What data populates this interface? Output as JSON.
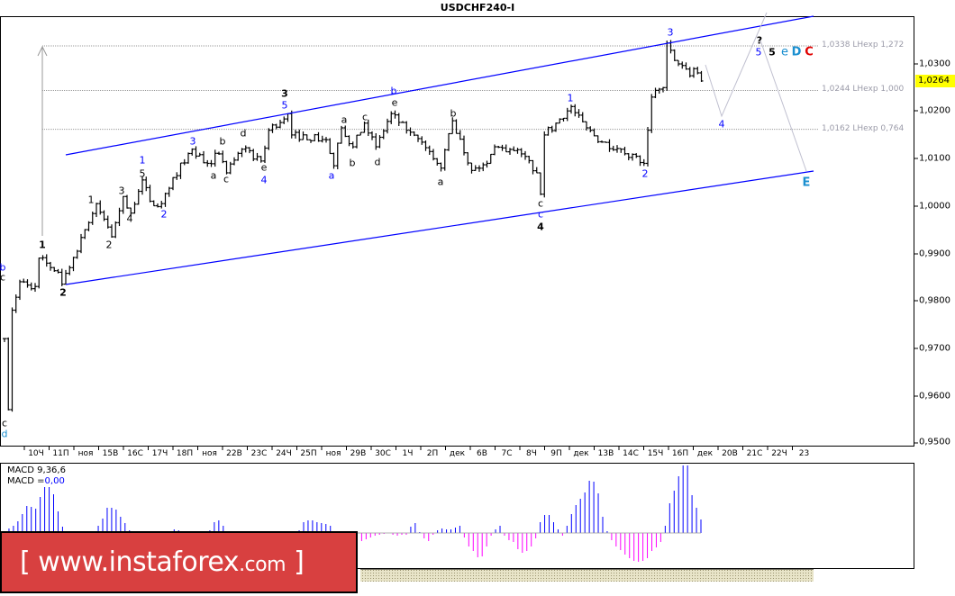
{
  "window": {
    "title": "USDCHF240-I"
  },
  "price_axis": {
    "ticks": [
      "1,0300",
      "1,0200",
      "1,0100",
      "1,0000",
      "0,9900",
      "0,9800",
      "0,9700",
      "0,9600",
      "0,9500"
    ],
    "current_price": "1,0264",
    "current_price_color": "#ffff00"
  },
  "time_axis": {
    "ticks": [
      "10Ч",
      "11П",
      "ноя",
      "15В",
      "16С",
      "17Ч",
      "18П",
      "ноя",
      "22В",
      "23С",
      "24Ч",
      "25П",
      "ноя",
      "29В",
      "30С",
      "1Ч",
      "2П",
      "дек",
      "6В",
      "7С",
      "8Ч",
      "9П",
      "дек",
      "13В",
      "14С",
      "15Ч",
      "16П",
      "дек",
      "20В",
      "21С",
      "22Ч",
      "23"
    ]
  },
  "fib_levels": [
    {
      "label": "1,0338 LHexp 1,272",
      "price": 1.0338
    },
    {
      "label": "1,0244 LHexp 1,000",
      "price": 1.0244
    },
    {
      "label": "1,0162 LHexp 0,764",
      "price": 1.0162
    }
  ],
  "wave_labels": [
    {
      "text": "b",
      "color": "#0000ff"
    },
    {
      "text": "c",
      "color": "#000000"
    },
    {
      "text": "c",
      "color": "#000000"
    },
    {
      "text": "d",
      "color": "#1a8fd0"
    },
    {
      "text": "1",
      "color": "#000000"
    },
    {
      "text": "2",
      "color": "#000000"
    },
    {
      "text": "1",
      "color": "#000000"
    },
    {
      "text": "2",
      "color": "#000000"
    },
    {
      "text": "3",
      "color": "#000000"
    },
    {
      "text": "4",
      "color": "#000000"
    },
    {
      "text": "5",
      "color": "#000000"
    },
    {
      "text": "1",
      "color": "#0000ff"
    },
    {
      "text": "2",
      "color": "#0000ff"
    },
    {
      "text": "3",
      "color": "#0000ff"
    },
    {
      "text": "a",
      "color": "#000000"
    },
    {
      "text": "b",
      "color": "#000000"
    },
    {
      "text": "c",
      "color": "#000000"
    },
    {
      "text": "d",
      "color": "#000000"
    },
    {
      "text": "e",
      "color": "#000000"
    },
    {
      "text": "4",
      "color": "#0000ff"
    },
    {
      "text": "3",
      "color": "#000000"
    },
    {
      "text": "5",
      "color": "#0000ff"
    },
    {
      "text": "a",
      "color": "#0000ff"
    },
    {
      "text": "a",
      "color": "#000000"
    },
    {
      "text": "b",
      "color": "#000000"
    },
    {
      "text": "c",
      "color": "#000000"
    },
    {
      "text": "d",
      "color": "#000000"
    },
    {
      "text": "e",
      "color": "#000000"
    },
    {
      "text": "b",
      "color": "#0000ff"
    },
    {
      "text": "a",
      "color": "#000000"
    },
    {
      "text": "b",
      "color": "#000000"
    },
    {
      "text": "c",
      "color": "#000000"
    },
    {
      "text": "c",
      "color": "#0000ff"
    },
    {
      "text": "4",
      "color": "#000000"
    },
    {
      "text": "1",
      "color": "#0000ff"
    },
    {
      "text": "2",
      "color": "#0000ff"
    },
    {
      "text": "3",
      "color": "#0000ff"
    },
    {
      "text": "4",
      "color": "#0000ff"
    },
    {
      "text": "?",
      "color": "#000000"
    },
    {
      "text": "5",
      "color": "#0000ff"
    },
    {
      "text": "5",
      "color": "#000000"
    },
    {
      "text": "e",
      "color": "#1a8fd0"
    },
    {
      "text": "D",
      "color": "#1a8fd0"
    },
    {
      "text": "C",
      "color": "#e00000"
    },
    {
      "text": "E",
      "color": "#1a8fd0"
    }
  ],
  "indicator": {
    "name": "MACD 9,36,6",
    "value_label": "MACD =",
    "value": "0,00"
  },
  "watermark": {
    "bracket_open": "[",
    "text": "www.instaforex",
    "suffix": ".com",
    "bracket_close": "]"
  },
  "colors": {
    "channel": "#0000ff",
    "bars": "#000000",
    "macd_positive": "#0000ff",
    "macd_negative": "#ff00ff",
    "watermark_bg": "#d84040"
  },
  "chart_data": {
    "type": "ohlc",
    "symbol": "USDCHF240-I",
    "ylim": [
      0.95,
      1.035
    ],
    "pivots": [
      {
        "bar": 0,
        "price": 0.972
      },
      {
        "bar": 1,
        "price": 0.957
      },
      {
        "bar": 2,
        "price": 0.978
      },
      {
        "bar": 4,
        "price": 0.984
      },
      {
        "bar": 8,
        "price": 0.983
      },
      {
        "bar": 9,
        "price": 0.989
      },
      {
        "bar": 14,
        "price": 0.986
      },
      {
        "bar": 15,
        "price": 0.9835
      },
      {
        "bar": 21,
        "price": 0.995
      },
      {
        "bar": 24,
        "price": 1.0005
      },
      {
        "bar": 28,
        "price": 0.9935
      },
      {
        "bar": 31,
        "price": 1.002
      },
      {
        "bar": 33,
        "price": 0.9985
      },
      {
        "bar": 36,
        "price": 1.0055
      },
      {
        "bar": 38,
        "price": 1.001
      },
      {
        "bar": 41,
        "price": 1.0005
      },
      {
        "bar": 44,
        "price": 1.006
      },
      {
        "bar": 49,
        "price": 1.012
      },
      {
        "bar": 53,
        "price": 1.009
      },
      {
        "bar": 56,
        "price": 1.011
      },
      {
        "bar": 58,
        "price": 1.007
      },
      {
        "bar": 62,
        "price": 1.012
      },
      {
        "bar": 67,
        "price": 1.0095
      },
      {
        "bar": 69,
        "price": 1.016
      },
      {
        "bar": 74,
        "price": 1.0195
      },
      {
        "bar": 75,
        "price": 1.015
      },
      {
        "bar": 84,
        "price": 1.014
      },
      {
        "bar": 86,
        "price": 1.0085
      },
      {
        "bar": 88,
        "price": 1.0165
      },
      {
        "bar": 91,
        "price": 1.0125
      },
      {
        "bar": 94,
        "price": 1.0175
      },
      {
        "bar": 97,
        "price": 1.0125
      },
      {
        "bar": 101,
        "price": 1.0195
      },
      {
        "bar": 105,
        "price": 1.016
      },
      {
        "bar": 111,
        "price": 1.0115
      },
      {
        "bar": 114,
        "price": 1.008
      },
      {
        "bar": 117,
        "price": 1.018
      },
      {
        "bar": 122,
        "price": 1.0075
      },
      {
        "bar": 126,
        "price": 1.009
      },
      {
        "bar": 128,
        "price": 1.0125
      },
      {
        "bar": 135,
        "price": 1.011
      },
      {
        "bar": 139,
        "price": 1.007
      },
      {
        "bar": 140,
        "price": 1.0025
      },
      {
        "bar": 141,
        "price": 1.015
      },
      {
        "bar": 144,
        "price": 1.0175
      },
      {
        "bar": 148,
        "price": 1.021
      },
      {
        "bar": 152,
        "price": 1.0165
      },
      {
        "bar": 156,
        "price": 1.0135
      },
      {
        "bar": 161,
        "price": 1.012
      },
      {
        "bar": 167,
        "price": 1.009
      },
      {
        "bar": 169,
        "price": 1.023
      },
      {
        "bar": 172,
        "price": 1.025
      },
      {
        "bar": 173,
        "price": 1.0344
      },
      {
        "bar": 176,
        "price": 1.03
      },
      {
        "bar": 179,
        "price": 1.0275
      },
      {
        "bar": 180,
        "price": 1.029
      },
      {
        "bar": 182,
        "price": 1.0264
      }
    ],
    "macd_histogram": [
      2,
      5,
      8,
      13,
      21,
      30,
      29,
      27,
      40,
      51,
      51,
      43,
      24,
      7,
      0,
      -2,
      -5,
      -6,
      -4,
      -2,
      2,
      8,
      16,
      28,
      28,
      26,
      18,
      11,
      3,
      -2,
      -4,
      -6,
      -8,
      -7,
      -5,
      -3,
      -1,
      2,
      4,
      3,
      1,
      -2,
      -4,
      -3,
      -1,
      1,
      3,
      12,
      14,
      8,
      -2,
      -5,
      -8,
      -10,
      -9,
      -7,
      -5,
      -3,
      -2,
      -1,
      1,
      -1,
      -2,
      -1,
      0,
      1,
      3,
      12,
      14,
      14,
      12,
      11,
      10,
      8,
      -3,
      -6,
      -9,
      -11,
      -12,
      -11,
      -9,
      -7,
      -5,
      -3,
      -2,
      -1,
      0,
      -2,
      -3,
      -2,
      -2,
      7,
      11,
      1,
      -6,
      -9,
      -2,
      3,
      5,
      4,
      4,
      6,
      8,
      -5,
      -15,
      -20,
      -27,
      -26,
      -15,
      -3,
      4,
      8,
      -3,
      -8,
      -10,
      -18,
      -22,
      -20,
      -15,
      -6,
      12,
      20,
      20,
      12,
      4,
      -3,
      8,
      21,
      31,
      38,
      45,
      58,
      57,
      44,
      18,
      2,
      -8,
      -15,
      -19,
      -24,
      -28,
      -31,
      -32,
      -31,
      -28,
      -20,
      -16,
      -10,
      8,
      33,
      47,
      63,
      75,
      75,
      42,
      28,
      15
    ]
  }
}
